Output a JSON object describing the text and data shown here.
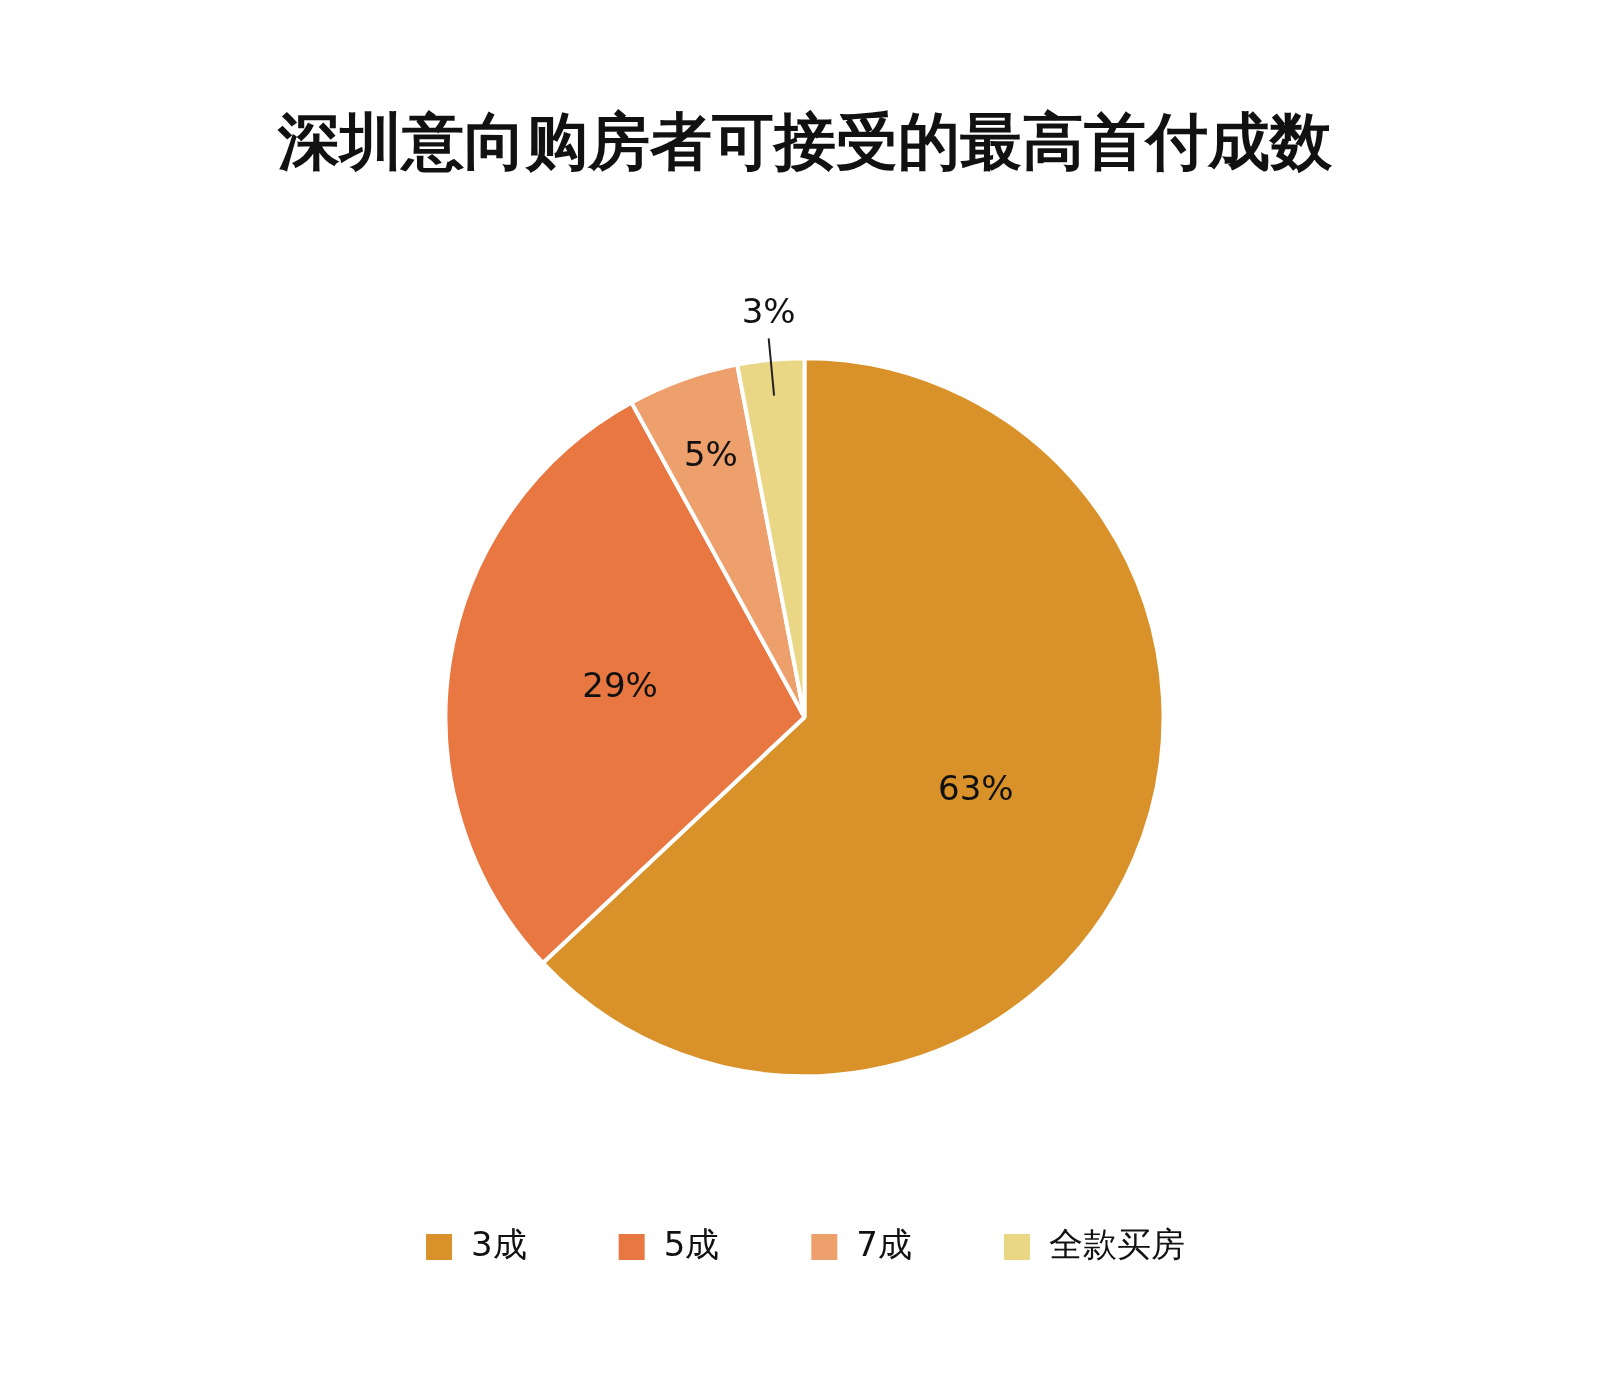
{
  "chart_data": {
    "type": "pie",
    "title": "深圳意向购房者可接受的最高首付成数",
    "categories": [
      "3成",
      "5成",
      "7成",
      "全款买房"
    ],
    "values": [
      63,
      29,
      5,
      3
    ],
    "colors": [
      "#d9922a",
      "#e87742",
      "#eda06b",
      "#ead785"
    ],
    "value_labels": [
      "63%",
      "29%",
      "5%",
      "3%"
    ],
    "legend": "bottom"
  }
}
